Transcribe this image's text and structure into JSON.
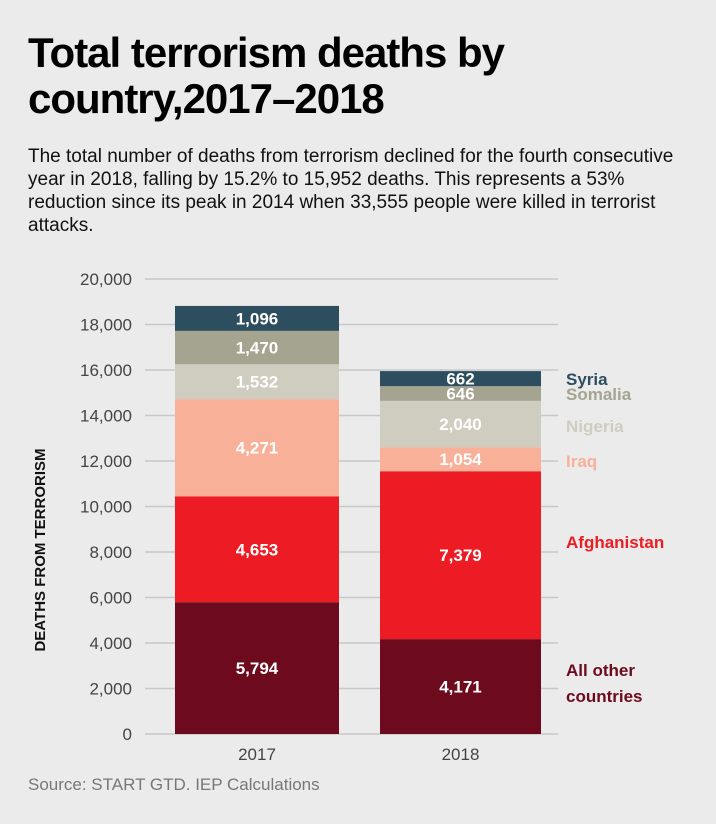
{
  "title": "Total terrorism deaths by country,2017–2018",
  "subtitle": "The total number of deaths from terrorism declined for the fourth consecutive year in 2018, falling by 15.2% to 15,952 deaths. This represents a 53% reduction since its peak in 2014 when 33,555 people were killed in terrorist attacks.",
  "source": "Source: START GTD. IEP Calculations",
  "chart_data": {
    "type": "bar",
    "stacked": true,
    "categories": [
      "2017",
      "2018"
    ],
    "ylabel": "DEATHS FROM TERRORISM",
    "ylim": [
      0,
      20000
    ],
    "yticks": [
      "0",
      "2,000",
      "4,000",
      "6,000",
      "8,000",
      "10,000",
      "12,000",
      "14,000",
      "16,000",
      "18,000",
      "20,000"
    ],
    "grid": true,
    "legend": "right, inline labels",
    "series": [
      {
        "name": "All other countries",
        "color": "#6d0a1e",
        "values": [
          5794,
          4171
        ],
        "labels": [
          "5,794",
          "4,171"
        ]
      },
      {
        "name": "Afghanistan",
        "color": "#ed1c24",
        "values": [
          4653,
          7379
        ],
        "labels": [
          "4,653",
          "7,379"
        ]
      },
      {
        "name": "Iraq",
        "color": "#f8b098",
        "values": [
          4271,
          1054
        ],
        "labels": [
          "4,271",
          "1,054"
        ]
      },
      {
        "name": "Nigeria",
        "color": "#cfcdc0",
        "values": [
          1532,
          2040
        ],
        "labels": [
          "1,532",
          "2,040"
        ]
      },
      {
        "name": "Somalia",
        "color": "#a5a491",
        "values": [
          1470,
          646
        ],
        "labels": [
          "1,470",
          "646"
        ]
      },
      {
        "name": "Syria",
        "color": "#2d4e5e",
        "values": [
          1096,
          662
        ],
        "labels": [
          "1,096",
          "662"
        ]
      }
    ]
  }
}
